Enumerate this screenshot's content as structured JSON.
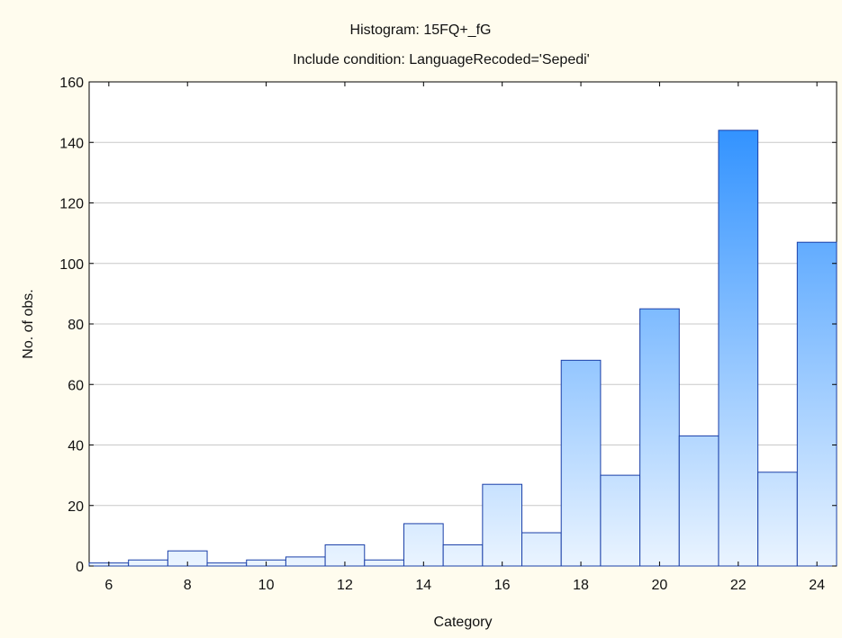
{
  "chart_data": {
    "type": "bar",
    "title": "Histogram: 15FQ+_fG",
    "subtitle": "Include condition: LanguageRecoded='Sepedi'",
    "xlabel": "Category",
    "ylabel": "No. of obs.",
    "x": [
      6,
      7,
      8,
      9,
      10,
      11,
      12,
      13,
      14,
      15,
      16,
      17,
      18,
      19,
      20,
      21,
      22,
      23,
      24
    ],
    "values": [
      1,
      2,
      5,
      1,
      2,
      3,
      7,
      2,
      14,
      7,
      27,
      11,
      68,
      30,
      85,
      43,
      144,
      31,
      107
    ],
    "xlim": [
      5.5,
      24.5
    ],
    "ylim": [
      0,
      160
    ],
    "x_ticks": [
      "6",
      "8",
      "10",
      "12",
      "14",
      "16",
      "18",
      "20",
      "22",
      "24"
    ],
    "y_ticks": [
      "0",
      "20",
      "40",
      "60",
      "80",
      "100",
      "120",
      "140",
      "160"
    ],
    "grid": "horizontal",
    "colors": {
      "bar_light": "#eaf4ff",
      "bar_dark": "#1e88ff",
      "bar_edge": "#1a3fa8",
      "background": "#FFFCEE"
    }
  }
}
